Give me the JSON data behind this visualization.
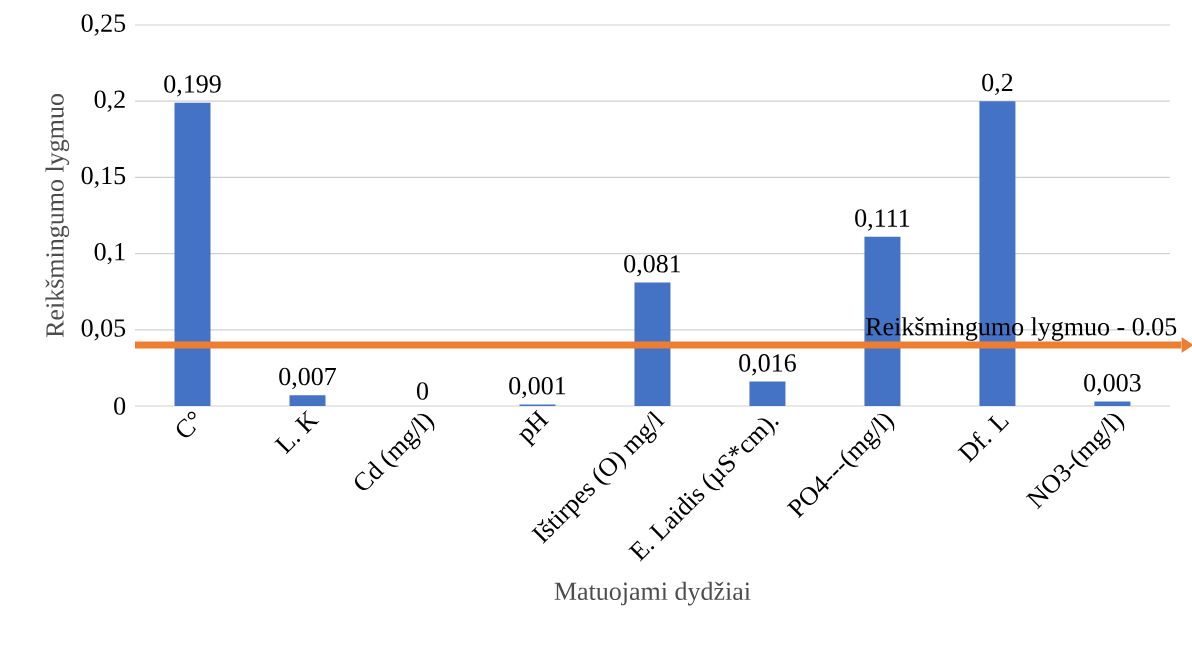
{
  "chart_data": {
    "type": "bar",
    "xlabel": "Matuojami dydžiai",
    "ylabel": "Reikšmingumo lygmuo",
    "categories": [
      "C°",
      "L. K",
      "Cd (mg/l)",
      "pH",
      "Ištirpes (O) mg/l",
      "E. Laidis (µS*cm).",
      "PO4---(mg/l)",
      "Df. L",
      "NO3-(mg/l)"
    ],
    "values": [
      0.199,
      0.007,
      0,
      0.001,
      0.081,
      0.016,
      0.111,
      0.2,
      0.003
    ],
    "value_labels": [
      "0,199",
      "0,007",
      "0",
      "0,001",
      "0,081",
      "0,016",
      "0,111",
      "0,2",
      "0,003"
    ],
    "color": "#4472c4",
    "ylim": [
      0,
      0.25
    ],
    "yticks": [
      0,
      {
        "value": 0.05,
        "label": "0,05"
      },
      {
        "value": 0.1,
        "label": "0,1"
      },
      {
        "value": 0.15,
        "label": "0,15"
      },
      {
        "value": 0.2,
        "label": "0,2"
      },
      {
        "value": 0.25,
        "label": "0,25"
      }
    ],
    "grid": "y",
    "ref_lines": [
      {
        "axis": "y",
        "value": 0.04,
        "label": "Reikšmingumo lygmuo - 0.05",
        "color": "#ed7d31"
      }
    ]
  }
}
